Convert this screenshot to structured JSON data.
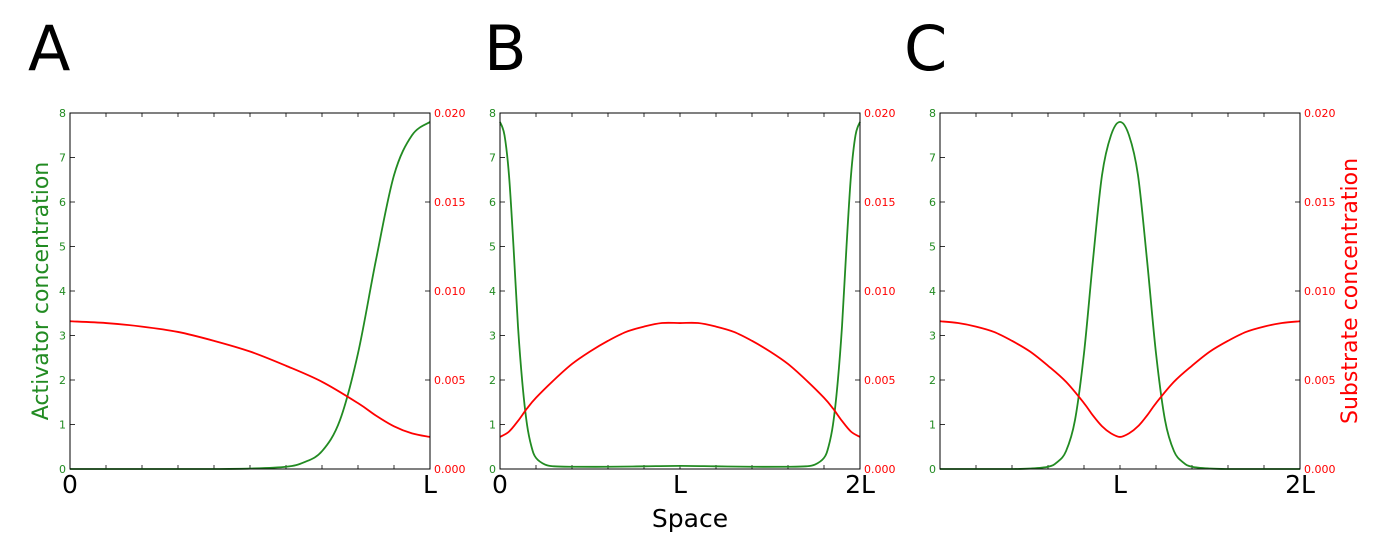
{
  "colors": {
    "activator": "#228b22",
    "substrate": "#ff0000",
    "axes": "#000000"
  },
  "labels": {
    "left_axis": "Activator concentration",
    "right_axis": "Substrate concentration",
    "x_axis": "Space"
  },
  "chart_data": [
    {
      "panel": "A",
      "type": "line",
      "xlim": [
        0,
        1
      ],
      "x_ticks": [
        {
          "value": 0,
          "label": "0"
        },
        {
          "value": 1,
          "label": "L"
        }
      ],
      "ylim_left": [
        0,
        8
      ],
      "ylim_right": [
        0,
        0.02
      ],
      "left_ticks": [
        "0",
        "1",
        "2",
        "3",
        "4",
        "5",
        "6",
        "7",
        "8"
      ],
      "right_ticks": [
        "0.000",
        "0.005",
        "0.010",
        "0.015",
        "0.020"
      ],
      "series": [
        {
          "axis": "left",
          "color": "#228b22",
          "x": [
            0,
            0.1,
            0.2,
            0.3,
            0.4,
            0.5,
            0.6,
            0.65,
            0.7,
            0.75,
            0.8,
            0.85,
            0.9,
            0.95,
            1.0
          ],
          "y": [
            0,
            0,
            0,
            0,
            0,
            0.01,
            0.05,
            0.15,
            0.4,
            1.1,
            2.6,
            4.7,
            6.6,
            7.5,
            7.8
          ]
        },
        {
          "axis": "right",
          "color": "#ff0000",
          "x": [
            0,
            0.1,
            0.2,
            0.3,
            0.4,
            0.5,
            0.6,
            0.7,
            0.8,
            0.85,
            0.9,
            0.95,
            1.0
          ],
          "y": [
            0.0083,
            0.0082,
            0.008,
            0.0077,
            0.0072,
            0.0066,
            0.0058,
            0.0049,
            0.0037,
            0.003,
            0.0024,
            0.002,
            0.0018
          ]
        }
      ]
    },
    {
      "panel": "B",
      "type": "line",
      "xlim": [
        0,
        2
      ],
      "x_ticks": [
        {
          "value": 0,
          "label": "0"
        },
        {
          "value": 1,
          "label": "L"
        },
        {
          "value": 2,
          "label": "2L"
        }
      ],
      "ylim_left": [
        0,
        8
      ],
      "ylim_right": [
        0,
        0.02
      ],
      "left_ticks": [
        "0",
        "1",
        "2",
        "3",
        "4",
        "5",
        "6",
        "7",
        "8"
      ],
      "right_ticks": [
        "0.000",
        "0.005",
        "0.010",
        "0.015",
        "0.020"
      ],
      "series": [
        {
          "axis": "left",
          "color": "#228b22",
          "x": [
            0,
            0.025,
            0.05,
            0.075,
            0.1,
            0.125,
            0.15,
            0.175,
            0.2,
            0.25,
            0.3,
            0.4,
            0.6,
            0.8,
            1.0,
            1.2,
            1.4,
            1.6,
            1.7,
            1.75,
            1.8,
            1.825,
            1.85,
            1.875,
            1.9,
            1.925,
            1.95,
            1.975,
            2.0
          ],
          "y": [
            7.8,
            7.5,
            6.6,
            5.0,
            3.2,
            1.9,
            1.0,
            0.5,
            0.25,
            0.1,
            0.06,
            0.05,
            0.05,
            0.06,
            0.07,
            0.06,
            0.05,
            0.05,
            0.06,
            0.1,
            0.25,
            0.5,
            1.0,
            1.9,
            3.2,
            5.0,
            6.6,
            7.5,
            7.8
          ]
        },
        {
          "axis": "right",
          "color": "#ff0000",
          "x": [
            0,
            0.05,
            0.1,
            0.15,
            0.2,
            0.3,
            0.4,
            0.5,
            0.6,
            0.7,
            0.8,
            0.9,
            1.0,
            1.1,
            1.2,
            1.3,
            1.4,
            1.5,
            1.6,
            1.7,
            1.8,
            1.85,
            1.9,
            1.95,
            2.0
          ],
          "y": [
            0.0018,
            0.0021,
            0.0027,
            0.0034,
            0.004,
            0.005,
            0.0059,
            0.0066,
            0.0072,
            0.0077,
            0.008,
            0.0082,
            0.0082,
            0.0082,
            0.008,
            0.0077,
            0.0072,
            0.0066,
            0.0059,
            0.005,
            0.004,
            0.0034,
            0.0027,
            0.0021,
            0.0018
          ]
        }
      ]
    },
    {
      "panel": "C",
      "type": "line",
      "xlim": [
        0,
        2
      ],
      "x_ticks": [
        {
          "value": 1,
          "label": "L"
        },
        {
          "value": 2,
          "label": "2L"
        }
      ],
      "ylim_left": [
        0,
        8
      ],
      "ylim_right": [
        0,
        0.02
      ],
      "left_ticks": [
        "0",
        "1",
        "2",
        "3",
        "4",
        "5",
        "6",
        "7",
        "8"
      ],
      "right_ticks": [
        "0.000",
        "0.005",
        "0.010",
        "0.015",
        "0.020"
      ],
      "series": [
        {
          "axis": "left",
          "color": "#228b22",
          "x": [
            0,
            0.2,
            0.4,
            0.5,
            0.6,
            0.65,
            0.7,
            0.75,
            0.8,
            0.85,
            0.9,
            0.95,
            1.0,
            1.05,
            1.1,
            1.15,
            1.2,
            1.25,
            1.3,
            1.35,
            1.4,
            1.5,
            1.6,
            1.8,
            2.0
          ],
          "y": [
            0,
            0,
            0,
            0.01,
            0.05,
            0.15,
            0.4,
            1.1,
            2.6,
            4.7,
            6.6,
            7.5,
            7.8,
            7.5,
            6.6,
            4.7,
            2.6,
            1.1,
            0.4,
            0.15,
            0.05,
            0.01,
            0,
            0,
            0
          ]
        },
        {
          "axis": "right",
          "color": "#ff0000",
          "x": [
            0,
            0.1,
            0.2,
            0.3,
            0.4,
            0.5,
            0.6,
            0.7,
            0.8,
            0.85,
            0.9,
            0.95,
            1.0,
            1.05,
            1.1,
            1.15,
            1.2,
            1.3,
            1.4,
            1.5,
            1.6,
            1.7,
            1.8,
            1.9,
            2.0
          ],
          "y": [
            0.0083,
            0.0082,
            0.008,
            0.0077,
            0.0072,
            0.0066,
            0.0058,
            0.0049,
            0.0037,
            0.003,
            0.0024,
            0.002,
            0.0018,
            0.002,
            0.0024,
            0.003,
            0.0037,
            0.0049,
            0.0058,
            0.0066,
            0.0072,
            0.0077,
            0.008,
            0.0082,
            0.0083
          ]
        }
      ]
    }
  ]
}
